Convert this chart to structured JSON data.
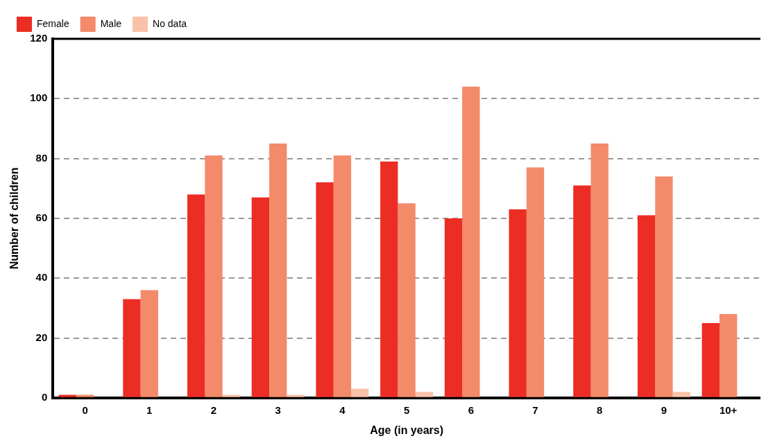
{
  "chart_data": {
    "type": "bar",
    "xlabel": "Age (in years)",
    "ylabel": "Number of children",
    "categories": [
      "0",
      "1",
      "2",
      "3",
      "4",
      "5",
      "6",
      "7",
      "8",
      "9",
      "10+"
    ],
    "series": [
      {
        "name": "Female",
        "color": "#ec2d24",
        "values": [
          1,
          33,
          68,
          67,
          72,
          79,
          60,
          63,
          71,
          61,
          25
        ]
      },
      {
        "name": "Male",
        "color": "#f38a6a",
        "values": [
          1,
          36,
          81,
          85,
          81,
          65,
          104,
          77,
          85,
          74,
          28
        ]
      },
      {
        "name": "No data",
        "color": "#f9c2a8",
        "values": [
          0,
          0,
          1,
          1,
          3,
          2,
          0,
          0,
          0,
          2,
          0
        ]
      }
    ],
    "ylim": [
      0,
      120
    ],
    "yticks": [
      0,
      20,
      40,
      60,
      80,
      100,
      120
    ],
    "grid": "y",
    "legend": "top left"
  }
}
